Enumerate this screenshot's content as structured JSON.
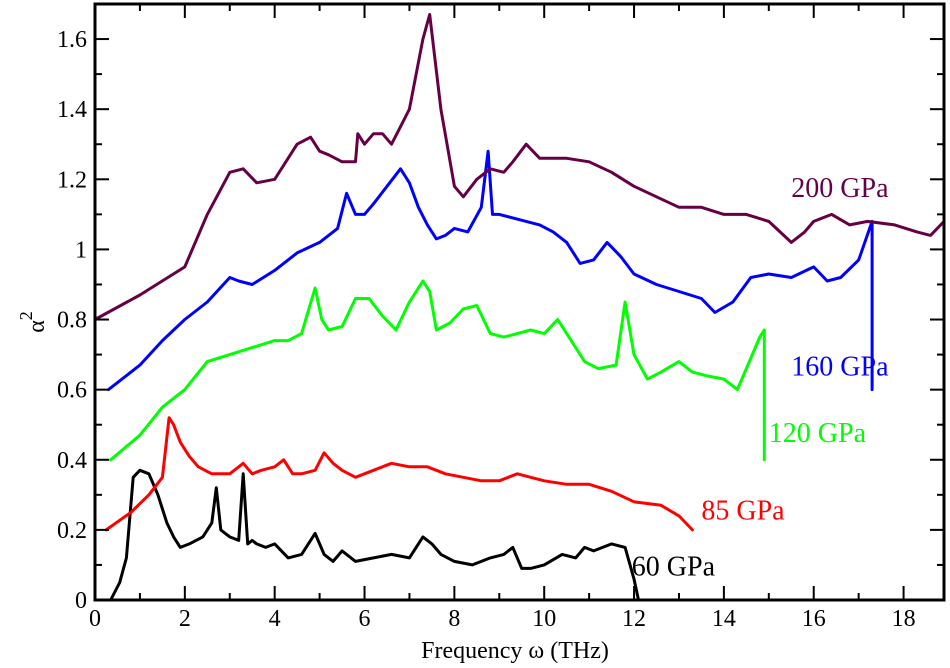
{
  "chart_data": {
    "type": "line",
    "title": "",
    "xlabel": "Frequency ω (THz)",
    "ylabel": "α²",
    "ylabel_base": "α",
    "ylabel_sup": "2",
    "xlim": [
      0,
      18.9
    ],
    "ylim": [
      0,
      1.7
    ],
    "xticks": [
      0,
      2,
      4,
      6,
      8,
      10,
      12,
      14,
      16,
      18
    ],
    "yticks": [
      0,
      0.2,
      0.4,
      0.6,
      0.8,
      1,
      1.2,
      1.4,
      1.6
    ],
    "ytick_labels": [
      "0",
      "0.2",
      "0.4",
      "0.6",
      "0.8",
      "1",
      "1.2",
      "1.4",
      "1.6"
    ],
    "grid": false,
    "series": [
      {
        "name": "60 GPa",
        "color": "#000000",
        "label_at": [
          11.95,
          0.07
        ],
        "x": [
          0.35,
          0.55,
          0.7,
          0.85,
          1.0,
          1.2,
          1.4,
          1.6,
          1.75,
          1.9,
          2.1,
          2.4,
          2.6,
          2.7,
          2.8,
          3.0,
          3.2,
          3.3,
          3.4,
          3.5,
          3.6,
          3.8,
          4.0,
          4.3,
          4.6,
          4.9,
          5.1,
          5.3,
          5.5,
          5.8,
          6.2,
          6.6,
          7.0,
          7.3,
          7.5,
          7.7,
          8.0,
          8.4,
          8.8,
          9.1,
          9.3,
          9.5,
          9.7,
          10.0,
          10.4,
          10.7,
          10.9,
          11.1,
          11.5,
          11.8,
          12.0,
          12.1
        ],
        "y": [
          0.0,
          0.05,
          0.12,
          0.35,
          0.37,
          0.36,
          0.3,
          0.22,
          0.18,
          0.15,
          0.16,
          0.18,
          0.22,
          0.32,
          0.2,
          0.18,
          0.17,
          0.36,
          0.16,
          0.17,
          0.16,
          0.15,
          0.16,
          0.12,
          0.13,
          0.19,
          0.13,
          0.11,
          0.14,
          0.11,
          0.12,
          0.13,
          0.12,
          0.18,
          0.16,
          0.13,
          0.11,
          0.1,
          0.12,
          0.13,
          0.15,
          0.09,
          0.09,
          0.1,
          0.13,
          0.12,
          0.15,
          0.14,
          0.16,
          0.15,
          0.06,
          0.0
        ]
      },
      {
        "name": "85 GPa",
        "color": "#ff0000",
        "label_at": [
          13.5,
          0.23
        ],
        "x": [
          0.25,
          0.8,
          1.2,
          1.5,
          1.65,
          1.75,
          1.9,
          2.1,
          2.3,
          2.6,
          3.0,
          3.3,
          3.5,
          3.7,
          4.0,
          4.2,
          4.4,
          4.6,
          4.9,
          5.1,
          5.3,
          5.5,
          5.8,
          6.2,
          6.6,
          7.0,
          7.4,
          7.8,
          8.2,
          8.6,
          9.0,
          9.4,
          9.7,
          10.0,
          10.5,
          11.0,
          11.5,
          12.0,
          12.6,
          13.0,
          13.3
        ],
        "y": [
          0.2,
          0.25,
          0.3,
          0.35,
          0.52,
          0.5,
          0.45,
          0.41,
          0.38,
          0.36,
          0.36,
          0.39,
          0.36,
          0.37,
          0.38,
          0.4,
          0.36,
          0.36,
          0.37,
          0.42,
          0.39,
          0.37,
          0.35,
          0.37,
          0.39,
          0.38,
          0.38,
          0.36,
          0.35,
          0.34,
          0.34,
          0.36,
          0.35,
          0.34,
          0.33,
          0.33,
          0.31,
          0.28,
          0.27,
          0.24,
          0.2
        ]
      },
      {
        "name": "120 GPa",
        "color": "#00ff00",
        "label_at": [
          15.0,
          0.45
        ],
        "x": [
          0.35,
          1.0,
          1.5,
          2.0,
          2.5,
          3.0,
          3.5,
          4.0,
          4.3,
          4.6,
          4.9,
          5.05,
          5.2,
          5.5,
          5.8,
          6.1,
          6.4,
          6.7,
          7.0,
          7.3,
          7.45,
          7.6,
          7.9,
          8.2,
          8.5,
          8.8,
          9.1,
          9.4,
          9.7,
          10.0,
          10.3,
          10.6,
          10.9,
          11.2,
          11.6,
          11.8,
          12.0,
          12.3,
          12.6,
          13.0,
          13.3,
          13.6,
          14.0,
          14.3,
          14.8,
          14.9,
          14.9
        ],
        "y": [
          0.4,
          0.47,
          0.55,
          0.6,
          0.68,
          0.7,
          0.72,
          0.74,
          0.74,
          0.76,
          0.89,
          0.8,
          0.77,
          0.78,
          0.86,
          0.86,
          0.81,
          0.77,
          0.85,
          0.91,
          0.88,
          0.77,
          0.79,
          0.83,
          0.84,
          0.76,
          0.75,
          0.76,
          0.77,
          0.76,
          0.8,
          0.74,
          0.68,
          0.66,
          0.67,
          0.85,
          0.7,
          0.63,
          0.65,
          0.68,
          0.65,
          0.64,
          0.63,
          0.6,
          0.75,
          0.77,
          0.4
        ]
      },
      {
        "name": "160 GPa",
        "color": "#0000ff",
        "label_at": [
          15.5,
          0.64
        ],
        "x": [
          0.3,
          1.0,
          1.5,
          2.0,
          2.5,
          3.0,
          3.2,
          3.5,
          4.0,
          4.5,
          5.0,
          5.4,
          5.6,
          5.8,
          6.0,
          6.2,
          6.5,
          6.8,
          7.0,
          7.2,
          7.4,
          7.6,
          7.8,
          8.0,
          8.3,
          8.6,
          8.75,
          8.85,
          9.0,
          9.3,
          9.6,
          9.9,
          10.2,
          10.5,
          10.8,
          11.1,
          11.4,
          11.7,
          12.0,
          12.5,
          13.0,
          13.5,
          13.8,
          14.2,
          14.6,
          15.0,
          15.5,
          16.0,
          16.3,
          16.6,
          17.0,
          17.3,
          17.3
        ],
        "y": [
          0.6,
          0.67,
          0.74,
          0.8,
          0.85,
          0.92,
          0.91,
          0.9,
          0.94,
          0.99,
          1.02,
          1.06,
          1.16,
          1.1,
          1.1,
          1.13,
          1.18,
          1.23,
          1.19,
          1.12,
          1.07,
          1.03,
          1.04,
          1.06,
          1.05,
          1.12,
          1.28,
          1.1,
          1.1,
          1.09,
          1.08,
          1.07,
          1.05,
          1.02,
          0.96,
          0.97,
          1.02,
          0.98,
          0.93,
          0.9,
          0.88,
          0.86,
          0.82,
          0.85,
          0.92,
          0.93,
          0.92,
          0.95,
          0.91,
          0.92,
          0.97,
          1.08,
          0.6
        ]
      },
      {
        "name": "200 GPa",
        "color": "#660044",
        "label_at": [
          15.5,
          1.15
        ],
        "x": [
          0,
          1.0,
          2.0,
          2.5,
          3.0,
          3.3,
          3.6,
          4.0,
          4.5,
          4.8,
          5.0,
          5.2,
          5.5,
          5.8,
          5.85,
          6.0,
          6.2,
          6.4,
          6.6,
          6.8,
          7.0,
          7.3,
          7.45,
          7.7,
          8.0,
          8.2,
          8.5,
          8.8,
          9.1,
          9.3,
          9.6,
          9.9,
          10.5,
          11.0,
          11.5,
          12.0,
          12.5,
          13.0,
          13.5,
          14.0,
          14.5,
          15.0,
          15.5,
          15.8,
          16.0,
          16.4,
          16.8,
          17.2,
          17.8,
          18.3,
          18.6,
          18.9
        ],
        "y": [
          0.8,
          0.87,
          0.95,
          1.1,
          1.22,
          1.23,
          1.19,
          1.2,
          1.3,
          1.32,
          1.28,
          1.27,
          1.25,
          1.25,
          1.33,
          1.3,
          1.33,
          1.33,
          1.3,
          1.35,
          1.4,
          1.6,
          1.67,
          1.4,
          1.18,
          1.15,
          1.2,
          1.23,
          1.22,
          1.25,
          1.3,
          1.26,
          1.26,
          1.25,
          1.22,
          1.18,
          1.15,
          1.12,
          1.12,
          1.1,
          1.1,
          1.08,
          1.02,
          1.05,
          1.08,
          1.1,
          1.07,
          1.08,
          1.07,
          1.05,
          1.04,
          1.08
        ]
      }
    ]
  }
}
